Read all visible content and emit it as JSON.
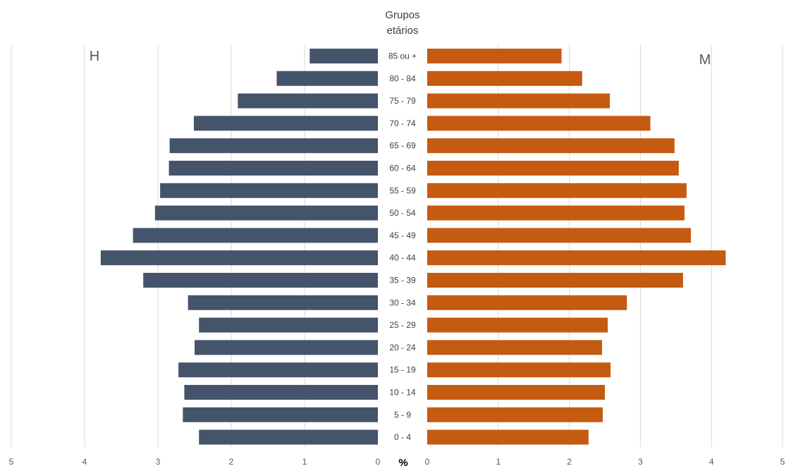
{
  "chart_data": {
    "type": "bar",
    "orientation": "horizontal-pyramid",
    "y_axis_title": [
      "Grupos",
      "etários"
    ],
    "x_unit_label": "%",
    "categories": [
      "85 ou +",
      "80 - 84",
      "75 - 79",
      "70 - 74",
      "65 - 69",
      "60 - 64",
      "55 - 59",
      "50 - 54",
      "45 - 49",
      "40 - 44",
      "35 - 39",
      "30 - 34",
      "25 - 29",
      "20 - 24",
      "15 - 19",
      "10 - 14",
      "5 - 9",
      "0 - 4"
    ],
    "series": [
      {
        "name": "H",
        "color": "#44546a",
        "values": [
          0.93,
          1.38,
          1.91,
          2.51,
          2.84,
          2.85,
          2.97,
          3.04,
          3.34,
          3.78,
          3.2,
          2.59,
          2.44,
          2.5,
          2.72,
          2.64,
          2.66,
          2.44
        ]
      },
      {
        "name": "M",
        "color": "#c55a11",
        "values": [
          1.89,
          2.18,
          2.57,
          3.14,
          3.48,
          3.54,
          3.65,
          3.62,
          3.71,
          4.2,
          3.6,
          2.81,
          2.54,
          2.46,
          2.58,
          2.5,
          2.47,
          2.27
        ]
      }
    ],
    "left_axis": {
      "range": [
        5,
        0
      ],
      "ticks": [
        "5",
        "4",
        "3",
        "2",
        "1",
        "0"
      ]
    },
    "right_axis": {
      "range": [
        0,
        5
      ],
      "ticks": [
        "0",
        "1",
        "2",
        "3",
        "4",
        "5"
      ]
    },
    "grid": true,
    "gridline_color": "#d9d9d9"
  }
}
